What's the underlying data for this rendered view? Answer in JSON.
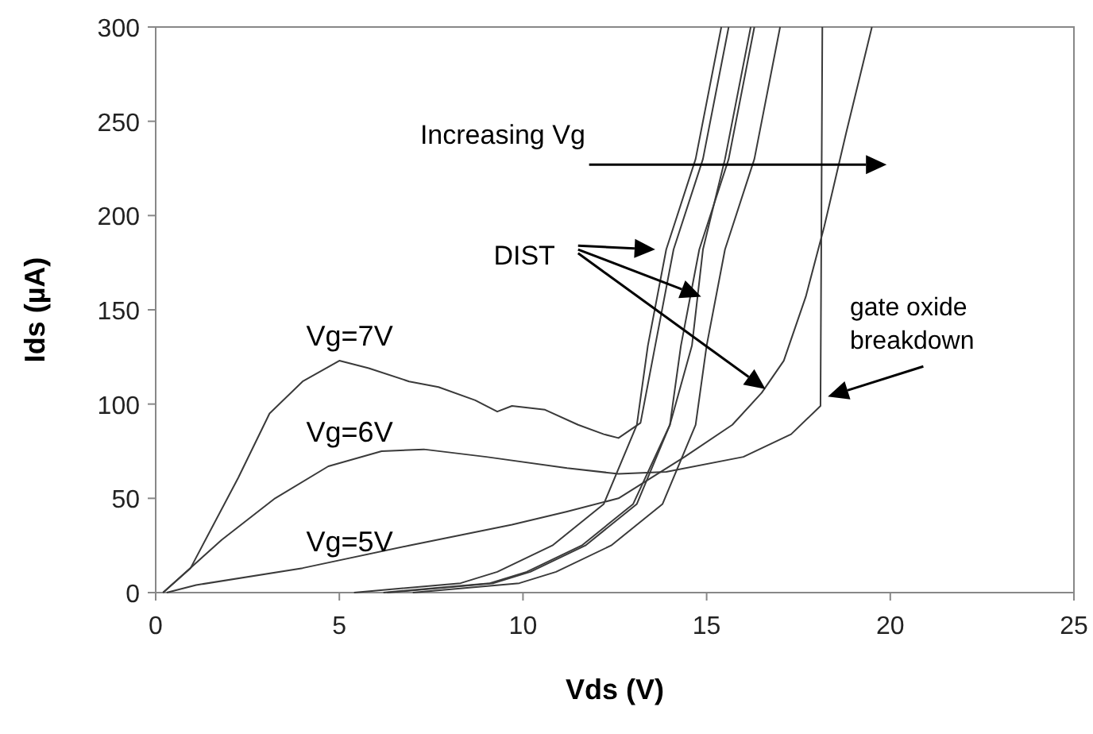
{
  "chart_data": {
    "type": "line",
    "xlabel": "Vds (V)",
    "ylabel": "Ids (µA)",
    "xlim": [
      0,
      25
    ],
    "ylim": [
      0,
      300
    ],
    "xticks": [
      0,
      5,
      10,
      15,
      20,
      25
    ],
    "yticks": [
      0,
      50,
      100,
      150,
      200,
      250,
      300
    ],
    "series": [
      {
        "name": "Vg=7V",
        "color": "#3a3a3a",
        "x": [
          0.2,
          0.95,
          2.25,
          3.1,
          4.0,
          5.0,
          5.8,
          6.9,
          7.7,
          8.7,
          9.3,
          9.7,
          10.6,
          11.5,
          12.2,
          12.6,
          13.2,
          13.6,
          14.1,
          14.9,
          15.6
        ],
        "values": [
          0,
          13,
          61,
          95,
          112,
          123,
          119,
          112,
          109,
          102,
          96,
          99,
          97,
          89,
          84,
          82,
          90,
          131,
          182,
          230,
          300
        ]
      },
      {
        "name": "Vg=6V",
        "color": "#3a3a3a",
        "x": [
          0.2,
          1.8,
          3.25,
          4.7,
          6.15,
          7.3,
          9.0,
          11.2,
          12.6,
          13.9,
          16.0,
          17.3,
          18.1,
          18.15
        ],
        "values": [
          0,
          28,
          50,
          67,
          75,
          76,
          72,
          66,
          63,
          64,
          72,
          84,
          99,
          300
        ]
      },
      {
        "name": "Vg=5V",
        "color": "#3a3a3a",
        "x": [
          0.3,
          1.1,
          4.0,
          6.9,
          9.7,
          11.2,
          12.6,
          14.4,
          15.7,
          16.5,
          17.1,
          17.7,
          18.2,
          18.8,
          19.5
        ],
        "values": [
          0,
          4,
          13,
          25,
          36,
          43,
          50,
          72,
          89,
          106,
          123,
          157,
          194,
          244,
          300
        ]
      },
      {
        "color": "#3a3a3a",
        "x": [
          5.4,
          8.3,
          9.3,
          10.8,
          12.2,
          13.1,
          13.4,
          13.9,
          14.7,
          15.4
        ],
        "values": [
          0,
          5,
          11,
          25,
          47,
          89,
          131,
          182,
          230,
          300
        ]
      },
      {
        "color": "#3a3a3a",
        "x": [
          6.2,
          9.1,
          10.1,
          11.6,
          13.0,
          14.0,
          14.6,
          14.9,
          15.5,
          16.2
        ],
        "values": [
          0,
          5,
          11,
          25,
          47,
          89,
          131,
          182,
          230,
          300
        ]
      },
      {
        "color": "#3a3a3a",
        "x": [
          6.3,
          9.2,
          10.2,
          11.7,
          13.1,
          14.0,
          14.3,
          14.8,
          15.6,
          16.3
        ],
        "values": [
          0,
          5,
          11,
          25,
          47,
          89,
          131,
          182,
          230,
          300
        ]
      },
      {
        "color": "#3a3a3a",
        "x": [
          7.0,
          9.9,
          10.9,
          12.4,
          13.8,
          14.7,
          15.0,
          15.5,
          16.3,
          17.0
        ],
        "values": [
          0,
          5,
          11,
          25,
          47,
          89,
          131,
          182,
          230,
          300
        ]
      }
    ],
    "annotations": [
      "Increasing Vg",
      "DIST",
      "gate oxide breakdown"
    ]
  }
}
